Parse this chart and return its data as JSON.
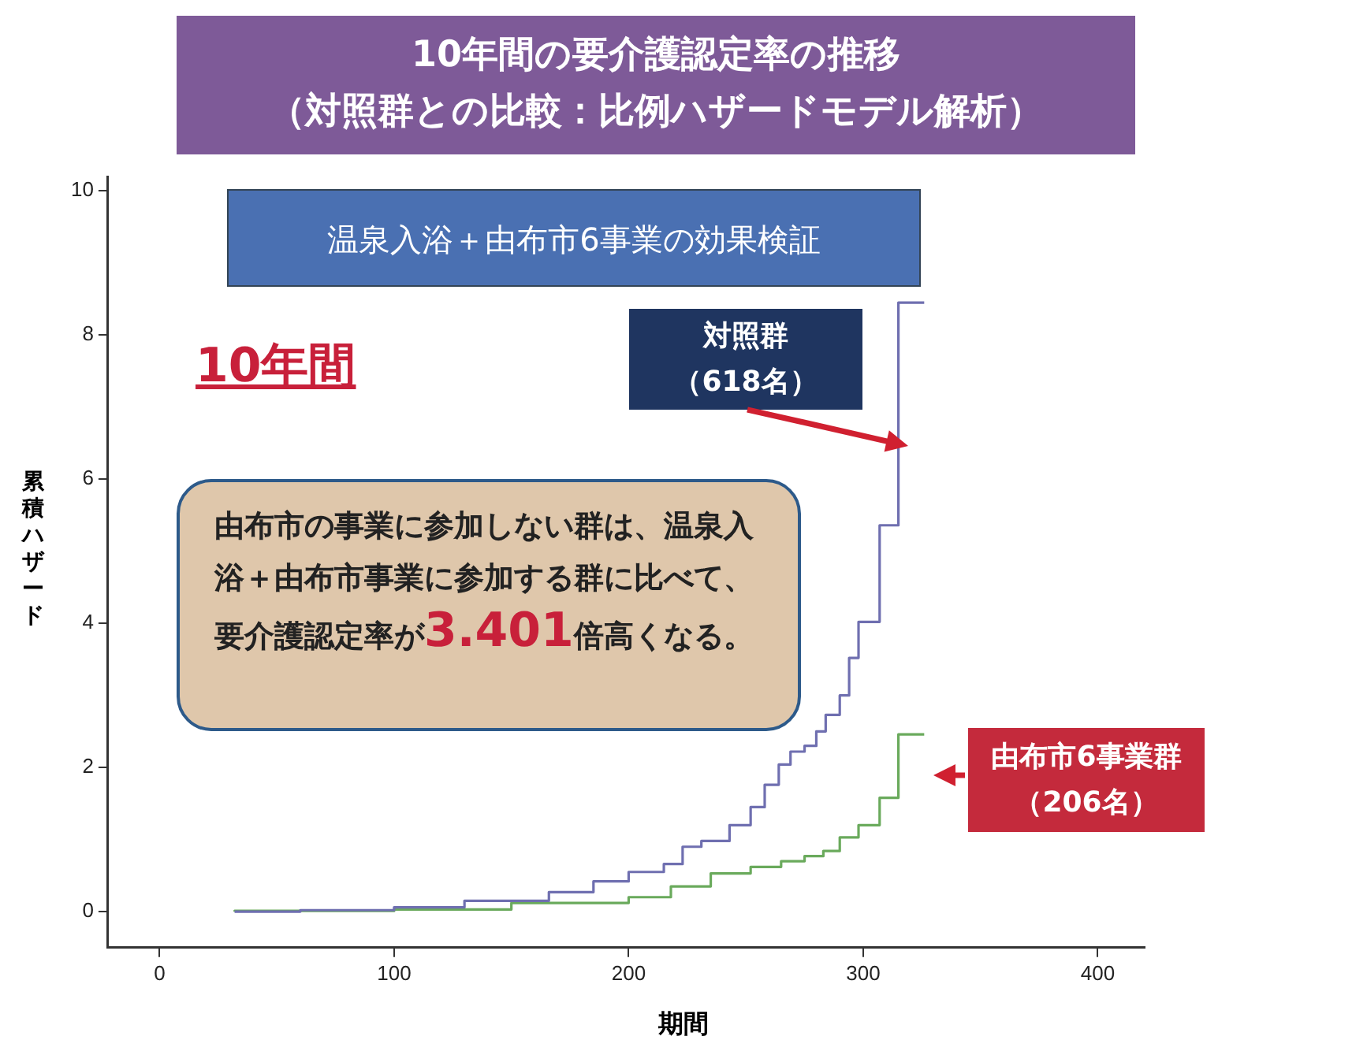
{
  "chart_data": {
    "type": "step",
    "title": "10年間の要介護認定率の推移",
    "subtitle": "（対照群との比較：比例ハザードモデル解析）",
    "xlabel": "期間",
    "ylabel": "累積ハザード",
    "annotations": [
      "温泉入浴＋由布市6事業の効果検証",
      "10年間",
      "由布市の事業に参加しない群は、温泉入浴＋由布市事業に参加する群に比べて、要介護認定率が3.401倍高くなる。"
    ],
    "xlim": [
      -22,
      420
    ],
    "ylim": [
      -0.5,
      10.2
    ],
    "xticks": [
      0,
      100,
      200,
      300,
      400
    ],
    "yticks": [
      0,
      2,
      4,
      6,
      8,
      10
    ],
    "grid": false,
    "legend": false,
    "marker": "none",
    "line_style": "solid",
    "series": [
      {
        "name": "対照群（618名）",
        "color": "#6f6fb0",
        "x": [
          32,
          60,
          100,
          130,
          166,
          185,
          200,
          215,
          223,
          231,
          243,
          252,
          258,
          264,
          269,
          275,
          280,
          284,
          290,
          294,
          298,
          307,
          315,
          326
        ],
        "values": [
          0,
          0,
          0.02,
          0.06,
          0.15,
          0.27,
          0.42,
          0.55,
          0.66,
          0.9,
          0.98,
          1.2,
          1.45,
          1.76,
          2.04,
          2.22,
          2.3,
          2.5,
          2.73,
          3.0,
          3.52,
          4.02,
          5.36,
          8.45
        ]
      },
      {
        "name": "由布市6事業群（206名）",
        "color": "#6aaa5c",
        "x": [
          32,
          100,
          150,
          200,
          218,
          235,
          252,
          265,
          275,
          283,
          290,
          298,
          307,
          315,
          326
        ],
        "values": [
          0,
          0.01,
          0.03,
          0.12,
          0.2,
          0.35,
          0.53,
          0.62,
          0.7,
          0.77,
          0.84,
          1.03,
          1.2,
          1.58,
          2.46
        ]
      }
    ]
  }
}
